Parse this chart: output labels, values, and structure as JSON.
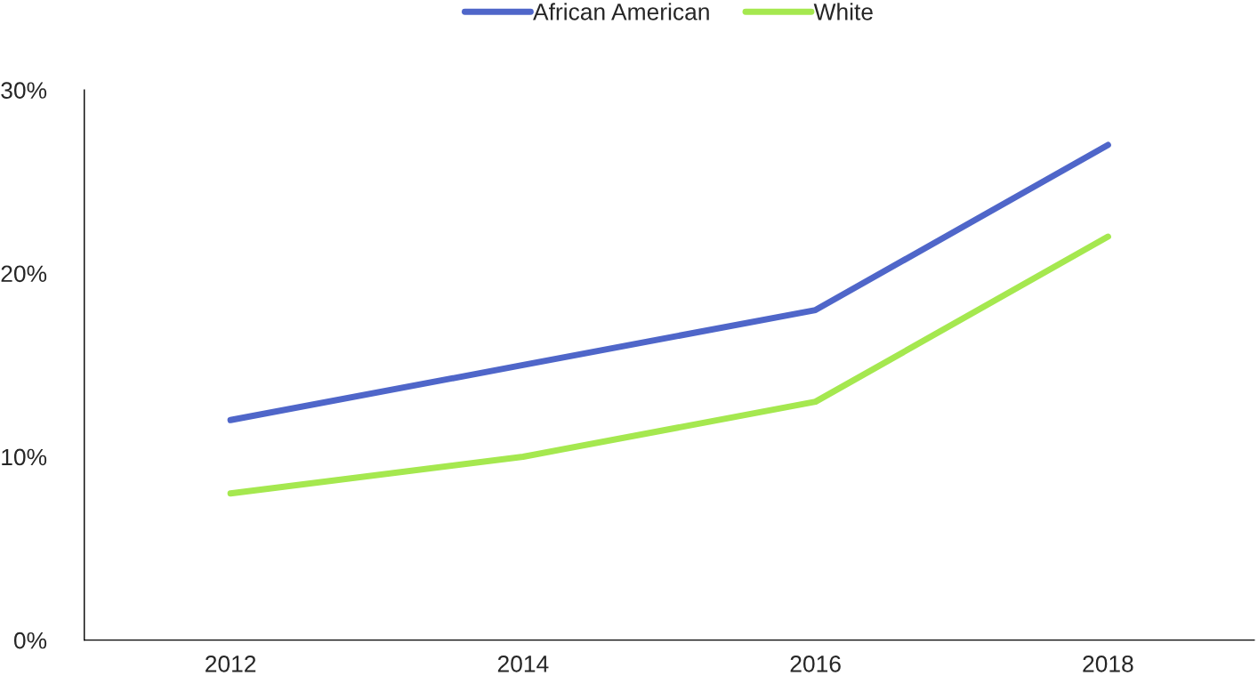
{
  "chart_data": {
    "type": "line",
    "categories": [
      "2012",
      "2014",
      "2016",
      "2018"
    ],
    "series": [
      {
        "name": "African American",
        "color": "#4f66c9",
        "values": [
          12,
          15,
          18,
          27
        ]
      },
      {
        "name": "White",
        "color": "#a5e84f",
        "values": [
          8,
          10,
          13,
          22
        ]
      }
    ],
    "ylim": [
      0,
      30
    ],
    "yticks": [
      {
        "value": 0,
        "label": "0%"
      },
      {
        "value": 10,
        "label": "10%"
      },
      {
        "value": 20,
        "label": "20%"
      },
      {
        "value": 30,
        "label": "30%"
      }
    ],
    "legend": "top",
    "grid": false,
    "marker": "none",
    "line_style": "solid"
  }
}
